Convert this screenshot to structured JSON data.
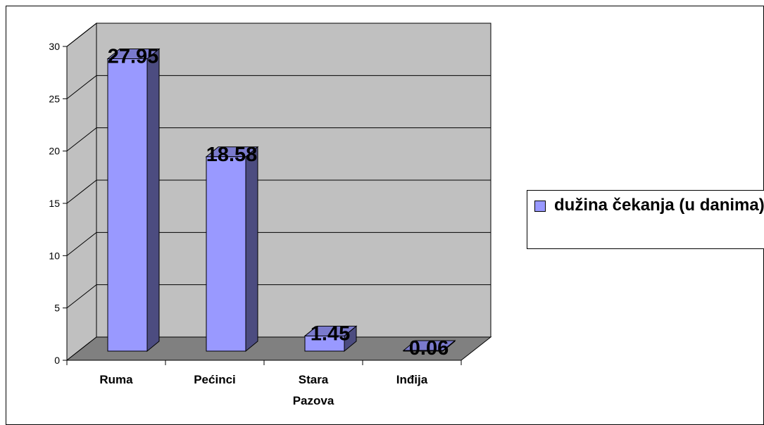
{
  "chart_data": {
    "type": "bar",
    "style": "3d-column",
    "categories": [
      "Ruma",
      "Pećinci",
      "Stara Pazova",
      "Inđija"
    ],
    "category_lines": [
      [
        "Ruma"
      ],
      [
        "Pećinci"
      ],
      [
        "Stara",
        "Pazova"
      ],
      [
        "Inđija"
      ]
    ],
    "series": [
      {
        "name": "dužina čekanja (u danima)",
        "values": [
          27.95,
          18.58,
          1.45,
          0.06
        ]
      }
    ],
    "data_labels": [
      "27.95",
      "18.58",
      "1.45",
      "0.06"
    ],
    "ylim": [
      0,
      30
    ],
    "yticks": [
      0,
      5,
      10,
      15,
      20,
      25,
      30
    ],
    "grid": true,
    "legend_position": "right",
    "colors": {
      "bar_front": "#9999ff",
      "bar_side": "#4c4c80",
      "bar_top": "#7a7acc",
      "back_wall": "#c0c0c0",
      "floor": "#808080"
    }
  },
  "legend": {
    "label": "dužina čekanja (u danima)"
  }
}
